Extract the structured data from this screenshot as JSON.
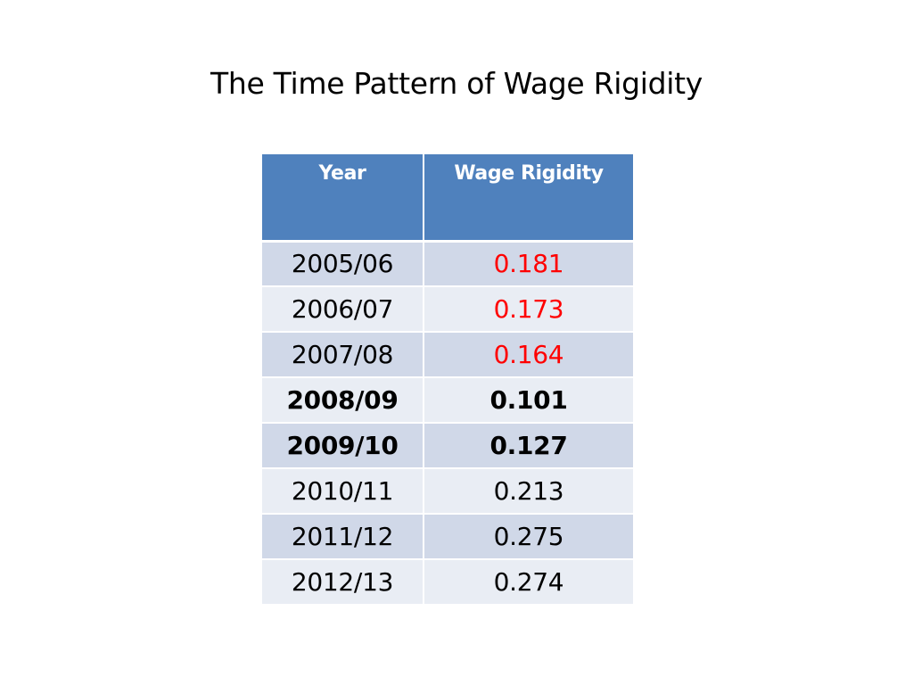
{
  "slide": {
    "title": "The Time Pattern of Wage Rigidity"
  },
  "table": {
    "headers": [
      "Year",
      "Wage Rigidity"
    ],
    "rows": [
      {
        "year": "2005/06",
        "value": "0.181",
        "highlight": "red"
      },
      {
        "year": "2006/07",
        "value": "0.173",
        "highlight": "red"
      },
      {
        "year": "2007/08",
        "value": "0.164",
        "highlight": "red"
      },
      {
        "year": "2008/09",
        "value": "0.101",
        "highlight": "bold"
      },
      {
        "year": "2009/10",
        "value": "0.127",
        "highlight": "bold"
      },
      {
        "year": "2010/11",
        "value": "0.213",
        "highlight": "none"
      },
      {
        "year": "2011/12",
        "value": "0.275",
        "highlight": "none"
      },
      {
        "year": "2012/13",
        "value": "0.274",
        "highlight": "none"
      }
    ]
  },
  "colors": {
    "header_bg": "#4f81bd",
    "row_odd_bg": "#d0d8e8",
    "row_even_bg": "#e9edf4",
    "highlight_red": "#ff0000"
  }
}
